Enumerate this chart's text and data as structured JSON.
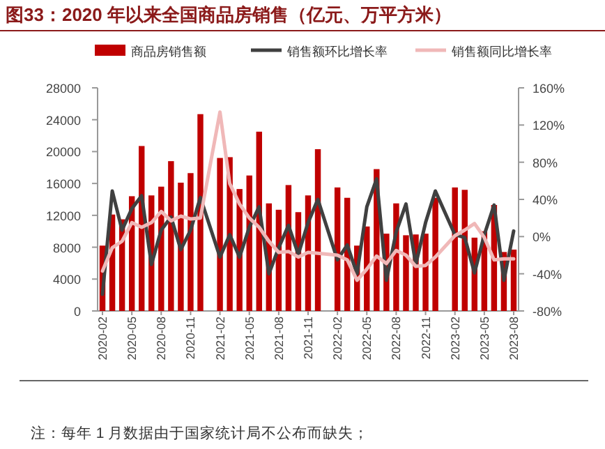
{
  "chart_data": {
    "type": "bar",
    "title": "图33：2020 年以来全国商品房销售（亿元、万平方米）",
    "categories": [
      "2020-02",
      null,
      null,
      "2020-05",
      null,
      null,
      "2020-08",
      null,
      null,
      "2020-11",
      null,
      null,
      "2021-02",
      null,
      null,
      "2021-05",
      null,
      null,
      "2021-08",
      null,
      null,
      "2021-11",
      null,
      null,
      "2022-02",
      null,
      null,
      "2022-05",
      null,
      null,
      "2022-08",
      null,
      null,
      "2022-11",
      null,
      null,
      "2023-02",
      null,
      null,
      "2023-05",
      null,
      null,
      "2023-08"
    ],
    "series": [
      {
        "name": "商品房销售额",
        "color": "#c00000",
        "values": [
          8200,
          12100,
          11500,
          14400,
          20700,
          14500,
          15600,
          18800,
          16100,
          17300,
          24700,
          null,
          19200,
          19300,
          15300,
          17000,
          22500,
          13500,
          12700,
          15800,
          12400,
          14500,
          20300,
          null,
          15500,
          14200,
          8200,
          10600,
          17800,
          9700,
          13500,
          9500,
          9600,
          9700,
          14200,
          null,
          15500,
          15200,
          9200,
          10000,
          13300,
          7400,
          7700
        ]
      },
      {
        "name": "销售额环比增长率",
        "type": "line",
        "axis": "y2",
        "color": "#404040",
        "values": [
          -62,
          49,
          7,
          30,
          44,
          -30,
          7,
          21,
          -14,
          7,
          42,
          null,
          -22,
          2,
          -22,
          10,
          32,
          -40,
          -12,
          12,
          -19,
          15,
          40,
          null,
          -25,
          -9,
          -40,
          32,
          62,
          -47,
          5,
          35,
          -30,
          15,
          49,
          null,
          2,
          -1,
          -39,
          2,
          34,
          -47,
          6
        ]
      },
      {
        "name": "销售额同比增长率",
        "type": "line",
        "axis": "y2",
        "color": "#f0b8b8",
        "values": [
          -37,
          -12,
          -5,
          15,
          10,
          15,
          27,
          17,
          22,
          19,
          20,
          null,
          134,
          57,
          35,
          20,
          10,
          -5,
          -17,
          -16,
          -22,
          -17,
          -18,
          null,
          -20,
          -25,
          -47,
          -35,
          -21,
          -29,
          -15,
          -20,
          -32,
          -31,
          -22,
          null,
          1,
          7,
          14,
          -1,
          -25,
          -24,
          -24
        ]
      }
    ],
    "ylim": [
      0,
      28000
    ],
    "yticks": [
      0,
      4000,
      8000,
      12000,
      16000,
      20000,
      24000,
      28000
    ],
    "y2lim": [
      -80,
      160
    ],
    "y2ticks": [
      {
        "value": -80,
        "label": "-80%"
      },
      {
        "value": -40,
        "label": "-40%"
      },
      {
        "value": 0,
        "label": "0%"
      },
      {
        "value": 40,
        "label": "40%"
      },
      {
        "value": 80,
        "label": "80%"
      },
      {
        "value": 120,
        "label": "120%"
      },
      {
        "value": 160,
        "label": "160%"
      }
    ],
    "legend": "top",
    "annotations": [
      "注：每年 1 月数据由于国家统计局不公布而缺失；"
    ]
  }
}
